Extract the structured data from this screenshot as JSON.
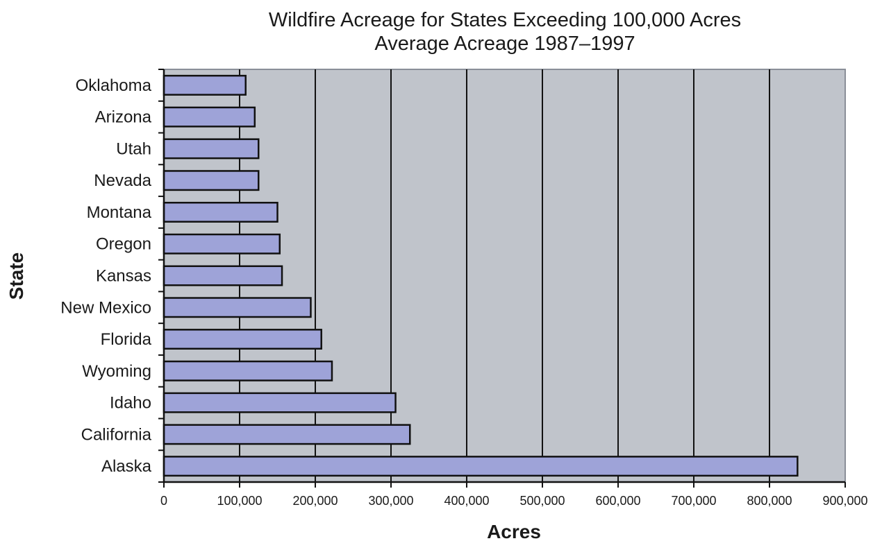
{
  "chart_data": {
    "type": "bar",
    "orientation": "horizontal",
    "title": "Wildfire Acreage for States Exceeding 100,000 Acres",
    "subtitle": "Average Acreage 1987–1997",
    "xlabel": "Acres",
    "ylabel": "State",
    "xlim": [
      0,
      900000
    ],
    "xticks": [
      0,
      100000,
      200000,
      300000,
      400000,
      500000,
      600000,
      700000,
      800000,
      900000
    ],
    "xtick_labels": [
      "0",
      "100,000",
      "200,000",
      "300,000",
      "400,000",
      "500,000",
      "600,000",
      "700,000",
      "800,000",
      "900,000"
    ],
    "grid": true,
    "legend": "none",
    "categories": [
      "Oklahoma",
      "Arizona",
      "Utah",
      "Nevada",
      "Montana",
      "Oregon",
      "Kansas",
      "New Mexico",
      "Florida",
      "Wyoming",
      "Idaho",
      "California",
      "Alaska"
    ],
    "values": [
      108000,
      120000,
      125000,
      125000,
      150000,
      153000,
      156000,
      194000,
      208000,
      222000,
      306000,
      325000,
      837000
    ],
    "colors": {
      "bar_fill": "#9ea3d8",
      "bar_stroke": "#111111",
      "plot_background": "#c0c4cb",
      "gridline": "#111111"
    }
  }
}
